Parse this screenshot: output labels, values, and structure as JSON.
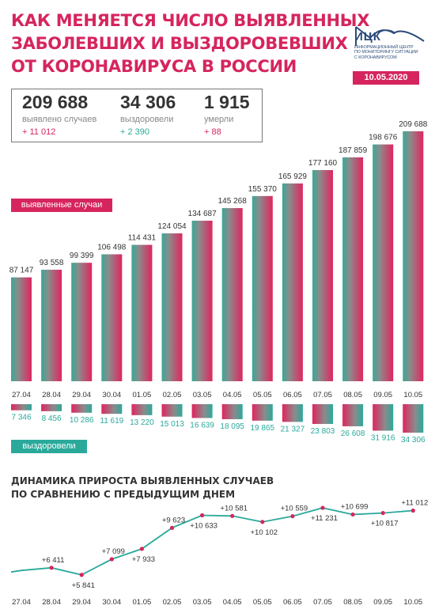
{
  "header": {
    "title_lines": [
      "КАК МЕНЯЕТСЯ ЧИСЛО ВЫЯВЛЕННЫХ",
      "ЗАБОЛЕВШИХ И ВЫЗДОРОВЕВШИХ",
      "ОТ КОРОНАВИРУСА В РОССИИ"
    ],
    "date": "10.05.2020"
  },
  "logo": {
    "name": "ИЦК",
    "subtitle_lines": [
      "ИНФОРМАЦИОННЫЙ ЦЕНТР",
      "ПО МОНИТОРИНГУ СИТУАЦИИ",
      "С КОРОНАВИРУСОМ"
    ]
  },
  "summary": {
    "detected": {
      "value": "209 688",
      "label": "выявлено случаев",
      "delta": "+ 11 012"
    },
    "recovered": {
      "value": "34 306",
      "label": "выздоровели",
      "delta": "+ 2 390"
    },
    "died": {
      "value": "1 915",
      "label": "умерли",
      "delta": "+ 88"
    }
  },
  "labels": {
    "detected_tag": "выявленные случаи",
    "recovered_tag": "выздоровели",
    "subtitle_lines": [
      "ДИНАМИКА ПРИРОСТА ВЫЯВЛЕННЫХ СЛУЧАЕВ",
      "ПО СРАВНЕНИЮ С ПРЕДЫДУЩИМ ДНЕМ"
    ]
  },
  "colors": {
    "accent": "#d6255e",
    "teal": "#2aa99b",
    "gray": "#888888"
  },
  "chart_data": [
    {
      "type": "bar",
      "categories": [
        "27.04",
        "28.04",
        "29.04",
        "30.04",
        "01.05",
        "02.05",
        "03.05",
        "04.05",
        "05.05",
        "06.05",
        "07.05",
        "08.05",
        "09.05",
        "10.05"
      ],
      "series": [
        {
          "name": "выявленные случаи",
          "values": [
            87147,
            93558,
            99399,
            106498,
            114431,
            124054,
            134687,
            145268,
            155370,
            165929,
            177160,
            187859,
            198676,
            209688
          ]
        }
      ],
      "value_labels": [
        "87 147",
        "93 558",
        "99 399",
        "106 498",
        "114 431",
        "124 054",
        "134 687",
        "145 268",
        "155 370",
        "165 929",
        "177 160",
        "187 859",
        "198 676",
        "209 688"
      ],
      "ylim": [
        0,
        209688
      ]
    },
    {
      "type": "bar",
      "categories": [
        "27.04",
        "28.04",
        "29.04",
        "30.04",
        "01.05",
        "02.05",
        "03.05",
        "04.05",
        "05.05",
        "06.05",
        "07.05",
        "08.05",
        "09.05",
        "10.05"
      ],
      "series": [
        {
          "name": "выздоровели",
          "values": [
            7346,
            8456,
            10286,
            11619,
            13220,
            15013,
            16639,
            18095,
            19865,
            21327,
            23803,
            26608,
            31916,
            34306
          ]
        }
      ],
      "value_labels": [
        "7 346",
        "8 456",
        "10 286",
        "11 619",
        "13 220",
        "15 013",
        "16 639",
        "18 095",
        "19 865",
        "21 327",
        "23 803",
        "26 608",
        "31 916",
        "34 306"
      ],
      "ylim": [
        0,
        34306
      ]
    },
    {
      "type": "line",
      "title": "ДИНАМИКА ПРИРОСТА ВЫЯВЛЕННЫХ СЛУЧАЕВ ПО СРАВНЕНИЮ С ПРЕДЫДУЩИМ ДНЕМ",
      "x": [
        "27.04",
        "28.04",
        "29.04",
        "30.04",
        "01.05",
        "02.05",
        "03.05",
        "04.05",
        "05.05",
        "06.05",
        "07.05",
        "08.05",
        "09.05",
        "10.05"
      ],
      "series": [
        {
          "name": "прирост",
          "values": [
            6198,
            6411,
            5841,
            7099,
            7933,
            9623,
            10633,
            10581,
            10102,
            10559,
            11231,
            10699,
            10817,
            11012
          ]
        }
      ],
      "value_labels": [
        "",
        "+6 411",
        "+5 841",
        "+7 099",
        "+7 933",
        "+9 623",
        "+10 633",
        "+10 581",
        "+10 102",
        "+10 559",
        "+11 231",
        "+10 699",
        "+10 817",
        "+11 012"
      ],
      "ylim": [
        5000,
        12000
      ]
    }
  ]
}
